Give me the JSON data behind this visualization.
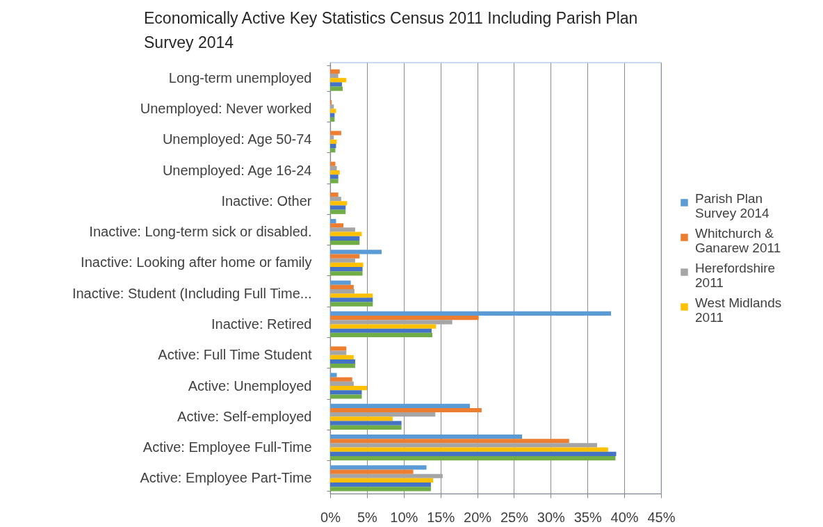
{
  "chart_data": {
    "type": "bar",
    "orientation": "horizontal",
    "title": "Economically Active Key Statistics Census 2011 Including Parish Plan Survey 2014",
    "categories": [
      "Long-term unemployed",
      "Unemployed: Never worked",
      "Unemployed: Age 50-74",
      "Unemployed: Age 16-24",
      "Inactive: Other",
      "Inactive: Long-term sick or disabled.",
      "Inactive: Looking after home or family",
      "Inactive: Student (Including Full Time...",
      "Inactive: Retired",
      "Active: Full Time Student",
      "Active: Unemployed",
      "Active: Self-employed",
      "Active: Employee Full-Time",
      "Active: Employee Part-Time"
    ],
    "series": [
      {
        "name": "Parish Plan Survey 2014",
        "color": "#5b9bd5",
        "values": [
          null,
          null,
          null,
          null,
          null,
          0.8,
          7.0,
          2.8,
          38.2,
          null,
          0.9,
          19.0,
          26.1,
          13.1
        ]
      },
      {
        "name": "Whitchurch & Ganarew 2011",
        "color": "#ed7d31",
        "values": [
          1.3,
          0.2,
          1.5,
          0.7,
          1.1,
          1.8,
          4.0,
          3.2,
          20.2,
          2.2,
          3.0,
          20.6,
          32.5,
          11.3
        ]
      },
      {
        "name": "Herefordshire 2011",
        "color": "#a5a5a5",
        "values": [
          1.1,
          0.5,
          0.5,
          0.9,
          1.5,
          3.4,
          3.4,
          3.3,
          16.6,
          2.2,
          3.2,
          14.3,
          36.3,
          15.3
        ]
      },
      {
        "name": "West Midlands 2011",
        "color": "#ffc000",
        "values": [
          2.2,
          0.8,
          0.9,
          1.3,
          2.3,
          4.3,
          4.5,
          5.8,
          14.4,
          3.2,
          5.0,
          8.5,
          37.8,
          14.0
        ]
      },
      {
        "color": "#4472c4",
        "values": [
          1.6,
          0.6,
          0.8,
          1.1,
          2.1,
          4.0,
          4.4,
          5.8,
          13.8,
          3.4,
          4.3,
          9.7,
          38.9,
          13.7
        ]
      },
      {
        "color": "#70ad47",
        "values": [
          1.7,
          0.6,
          0.7,
          1.1,
          2.1,
          4.0,
          4.4,
          5.8,
          13.9,
          3.4,
          4.3,
          9.7,
          38.8,
          13.7
        ]
      }
    ],
    "xlim": [
      0,
      45
    ],
    "xticks": [
      {
        "value": 0,
        "label": "0%"
      },
      {
        "value": 5,
        "label": "5%"
      },
      {
        "value": 10,
        "label": "10%"
      },
      {
        "value": 15,
        "label": "15%"
      },
      {
        "value": 20,
        "label": "20%"
      },
      {
        "value": 25,
        "label": "25%"
      },
      {
        "value": 30,
        "label": "30%"
      },
      {
        "value": 35,
        "label": "35%"
      },
      {
        "value": 40,
        "label": "40%"
      },
      {
        "value": 45,
        "label": "45%"
      }
    ],
    "grid": "x",
    "legend": "right"
  }
}
